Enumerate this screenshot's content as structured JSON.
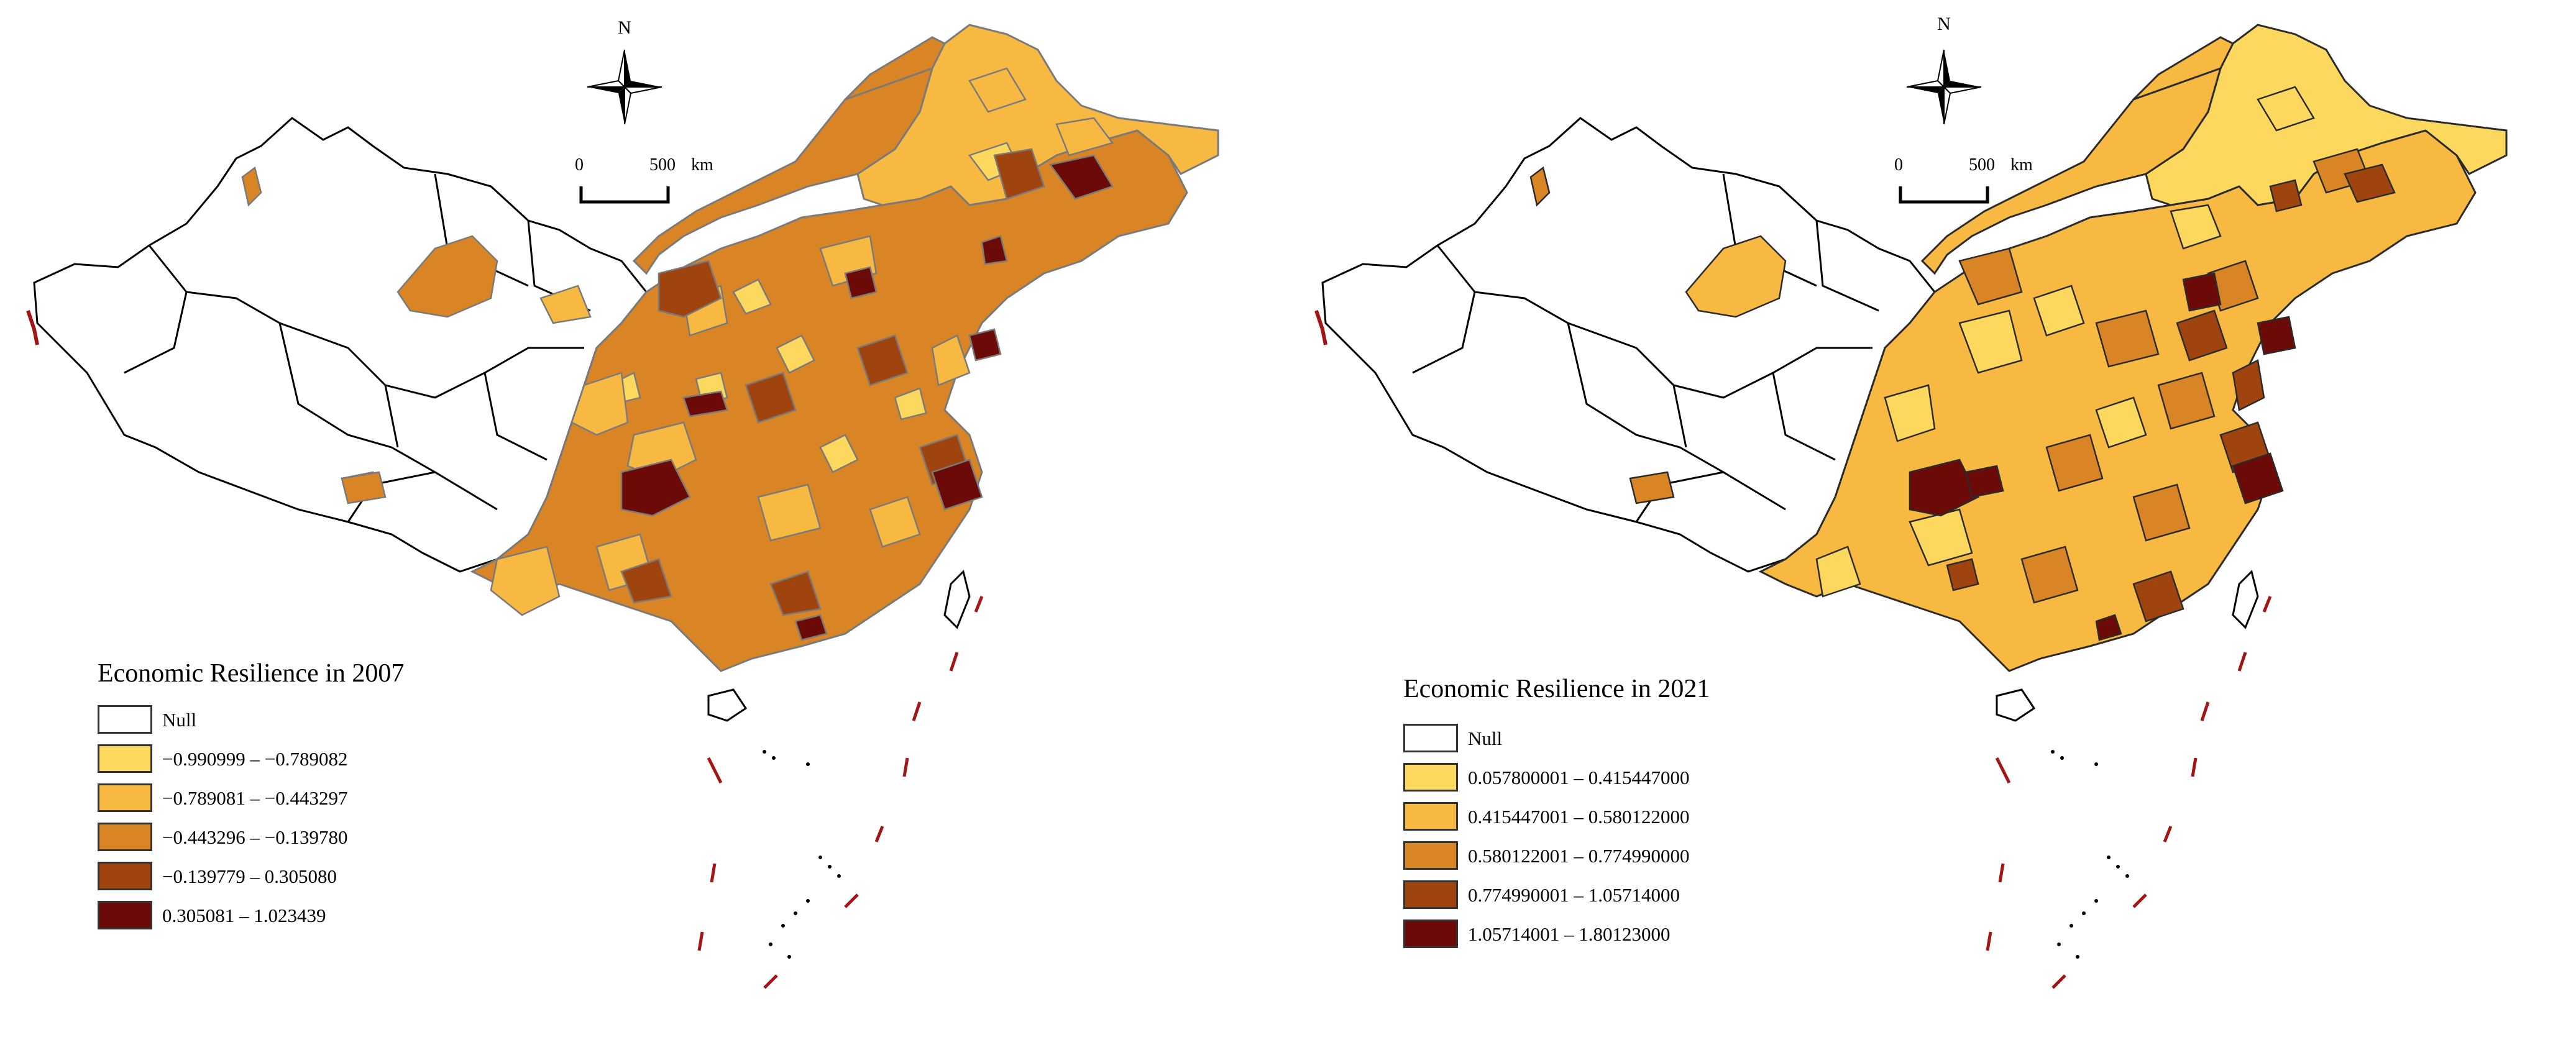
{
  "colors": {
    "null": "#ffffff",
    "c1": "#fdd85e",
    "c2": "#f7b941",
    "c3": "#d98425",
    "c4": "#a0440f",
    "c5": "#6b0a06",
    "border_2007": "#7a7a7a",
    "border_2021": "#2b2b2b",
    "dash_line": "#a31515"
  },
  "icons": [
    "north-arrow-compass-icon",
    "scale-bar-icon"
  ],
  "panels": [
    {
      "north_label": "N",
      "scale": {
        "zero": "0",
        "distance": "500",
        "unit": "km"
      },
      "legend": {
        "title": "Economic Resilience in 2007",
        "items": [
          {
            "label": "Null",
            "color": "#ffffff"
          },
          {
            "label": "−0.990999 – −0.789082",
            "color": "#fdd85e"
          },
          {
            "label": "−0.789081 – −0.443297",
            "color": "#f7b941"
          },
          {
            "label": "−0.443296 – −0.139780",
            "color": "#d98425"
          },
          {
            "label": "−0.139779 – 0.305080",
            "color": "#a0440f"
          },
          {
            "label": "0.305081 – 1.023439",
            "color": "#6b0a06"
          }
        ]
      }
    },
    {
      "north_label": "N",
      "scale": {
        "zero": "0",
        "distance": "500",
        "unit": "km"
      },
      "legend": {
        "title": "Economic Resilience in 2021",
        "items": [
          {
            "label": "Null",
            "color": "#ffffff"
          },
          {
            "label": "0.057800001 – 0.415447000",
            "color": "#fdd85e"
          },
          {
            "label": "0.415447001 – 0.580122000",
            "color": "#f7b941"
          },
          {
            "label": "0.580122001 – 0.774990000",
            "color": "#d98425"
          },
          {
            "label": "0.774990001 – 1.05714000",
            "color": "#a0440f"
          },
          {
            "label": "1.05714001 – 1.80123000",
            "color": "#6b0a06"
          }
        ]
      }
    }
  ]
}
